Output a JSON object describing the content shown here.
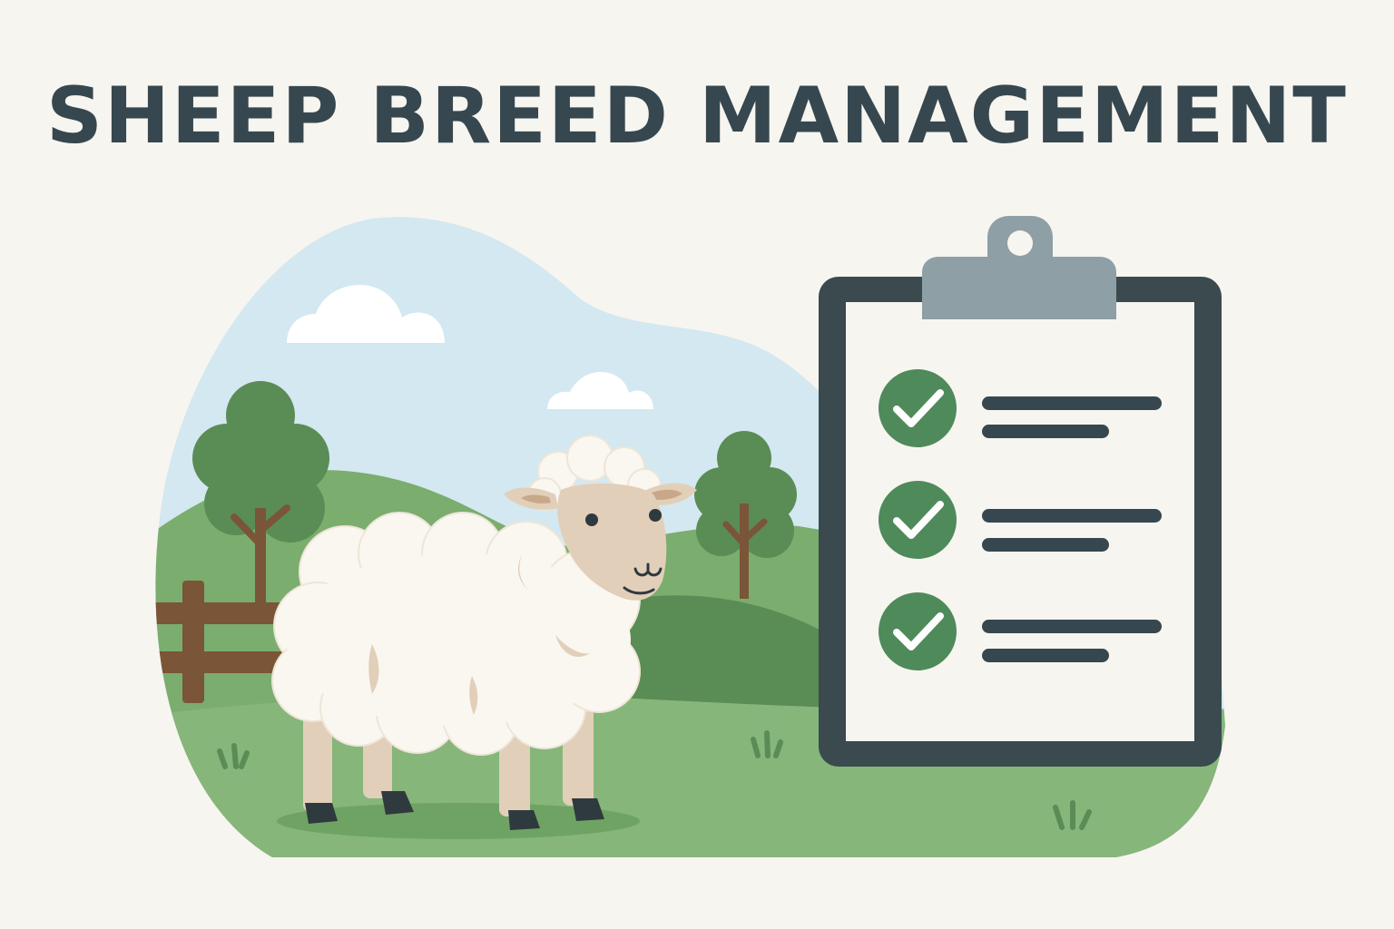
{
  "header": {
    "title": "SHEEP BREED MANAGEMENT"
  },
  "colors": {
    "background": "#f7f5f0",
    "title": "#36474f",
    "sky": "#d3e8f0",
    "grass_light": "#86b67a",
    "grass_dark": "#5a8c55",
    "tree_foliage": "#5a8c55",
    "tree_trunk": "#7a5538",
    "fence": "#7a5538",
    "wool": "#faf7f0",
    "sheep_face": "#e2cfb9",
    "hoof": "#2f3a3f",
    "clipboard_frame": "#3a4a4f",
    "clipboard_clip": "#8e9fa6",
    "paper": "#f7f5f0",
    "check_circle": "#4f8a5a",
    "check_mark": "#ffffff",
    "text_line": "#36474f"
  },
  "icons": {
    "clipboard": "clipboard-icon",
    "check": "check-circle-icon",
    "sheep": "sheep-illustration"
  },
  "checklist": {
    "items": [
      {
        "checked": true
      },
      {
        "checked": true
      },
      {
        "checked": true
      }
    ]
  }
}
